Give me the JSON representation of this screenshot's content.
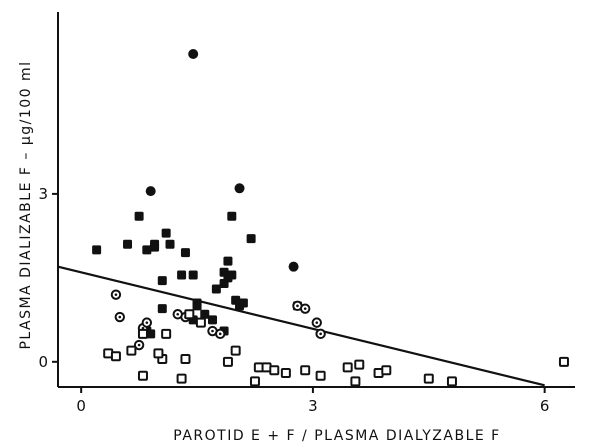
{
  "chart_data": {
    "type": "scatter",
    "title": "",
    "xlabel": "PAROTID E + F / PLASMA DIALYZABLE F",
    "ylabel": "PLASMA DIALIZABLE F – μg/100 ml",
    "xlim": [
      -0.3,
      6.6
    ],
    "ylim": [
      -0.45,
      6.25
    ],
    "x_ticks": [
      {
        "value": 0,
        "label": "0"
      },
      {
        "value": 3,
        "label": "3"
      },
      {
        "value": 6,
        "label": "6"
      }
    ],
    "y_ticks": [
      {
        "value": 0,
        "label": "0"
      },
      {
        "value": 3,
        "label": "3"
      }
    ],
    "grid": false,
    "regression_line": {
      "x": [
        -0.3,
        6.0
      ],
      "y": [
        1.7,
        -0.42
      ]
    },
    "series": [
      {
        "marker": "filled-square",
        "x": [
          0.2,
          0.6,
          0.85,
          0.75,
          0.95,
          0.95,
          1.1,
          1.15,
          1.05,
          0.85,
          0.9,
          1.05,
          1.3,
          1.45,
          1.35,
          1.5,
          1.45,
          1.7,
          1.9,
          1.85,
          1.95,
          1.9,
          1.95,
          2.0,
          1.85,
          1.75,
          2.2,
          1.4,
          1.5,
          1.6,
          1.85,
          2.05,
          2.8,
          2.1
        ],
        "y": [
          2.0,
          2.1,
          2.0,
          2.6,
          2.05,
          2.1,
          2.3,
          2.1,
          1.45,
          0.55,
          0.5,
          0.95,
          1.55,
          1.55,
          1.95,
          1.0,
          0.75,
          0.75,
          1.5,
          1.4,
          1.55,
          1.8,
          2.6,
          1.1,
          1.6,
          1.3,
          2.2,
          0.85,
          1.05,
          0.85,
          0.55,
          1.0,
          1.0,
          1.05
        ]
      },
      {
        "marker": "filled-circle",
        "x": [
          1.45,
          0.9,
          2.05,
          2.75
        ],
        "y": [
          5.5,
          3.05,
          3.1,
          1.7
        ]
      },
      {
        "marker": "circle-dot",
        "x": [
          0.45,
          0.5,
          0.8,
          0.85,
          0.75,
          1.35,
          1.25,
          1.7,
          1.8,
          2.8,
          2.9,
          3.05,
          3.1
        ],
        "y": [
          1.2,
          0.8,
          0.6,
          0.7,
          0.3,
          0.8,
          0.85,
          0.55,
          0.5,
          1.0,
          0.95,
          0.7,
          0.5
        ]
      },
      {
        "marker": "open-square",
        "x": [
          0.35,
          0.45,
          0.8,
          1.05,
          1.0,
          1.3,
          1.35,
          1.4,
          1.55,
          1.9,
          2.0,
          2.3,
          2.4,
          2.5,
          2.65,
          2.25,
          2.9,
          3.1,
          3.45,
          3.55,
          3.6,
          3.85,
          3.95,
          4.5,
          4.8,
          6.25,
          0.65,
          0.8,
          1.1
        ],
        "y": [
          0.15,
          0.1,
          -0.25,
          0.05,
          0.15,
          -0.3,
          0.05,
          0.85,
          0.7,
          0.0,
          0.2,
          -0.1,
          -0.1,
          -0.15,
          -0.2,
          -0.35,
          -0.15,
          -0.25,
          -0.1,
          -0.35,
          -0.05,
          -0.2,
          -0.15,
          -0.3,
          -0.35,
          0.0,
          0.2,
          0.5,
          0.5
        ]
      }
    ]
  }
}
